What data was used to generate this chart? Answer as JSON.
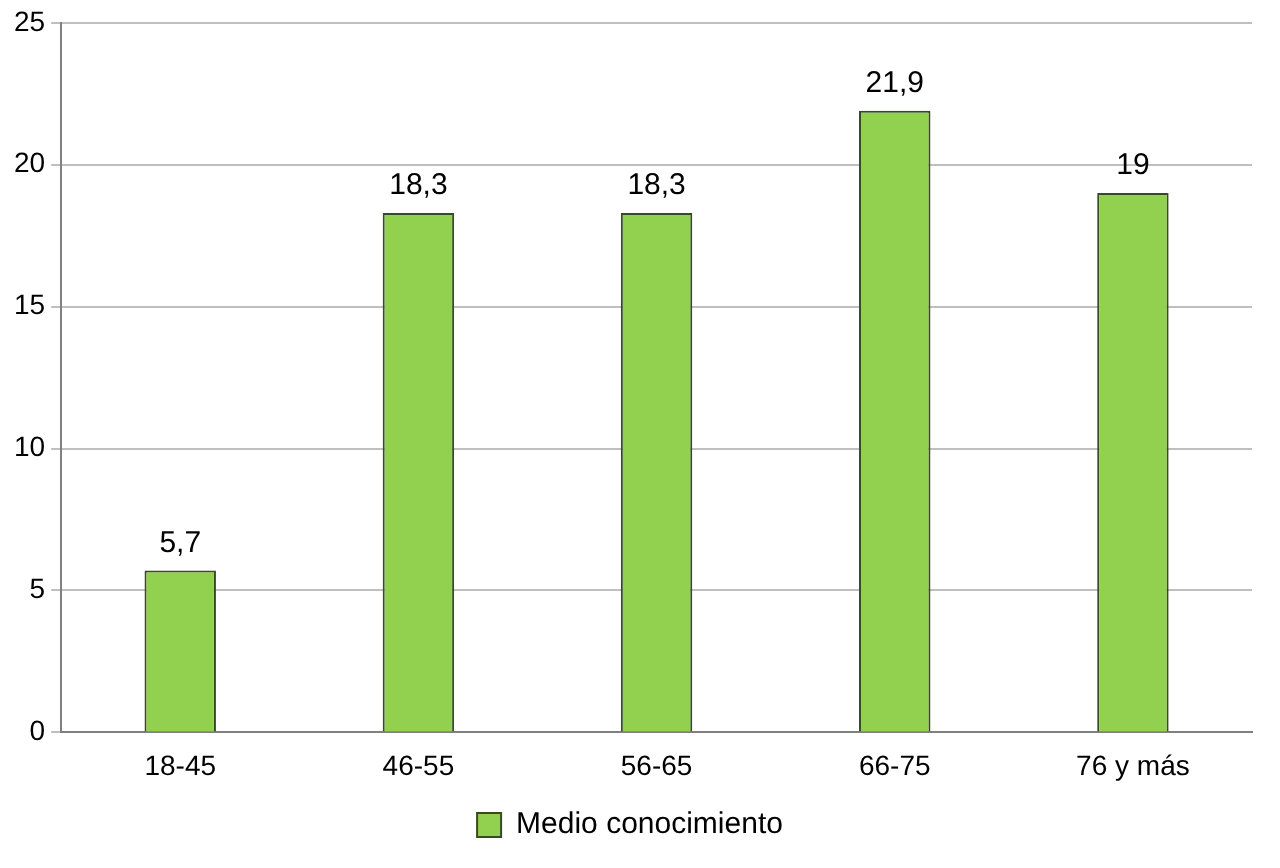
{
  "chart_data": {
    "type": "bar",
    "categories": [
      "18-45",
      "46-55",
      "56-65",
      "66-75",
      "76 y más"
    ],
    "series": [
      {
        "name": "Medio conocimiento",
        "color": "#92d050",
        "values": [
          5.7,
          18.3,
          18.3,
          21.9,
          19
        ],
        "value_labels": [
          "5,7",
          "18,3",
          "18,3",
          "21,9",
          "19"
        ]
      }
    ],
    "ylim": [
      0,
      25
    ],
    "yticks": [
      0,
      5,
      10,
      15,
      20,
      25
    ],
    "grid": "y",
    "legend": "bottom"
  }
}
